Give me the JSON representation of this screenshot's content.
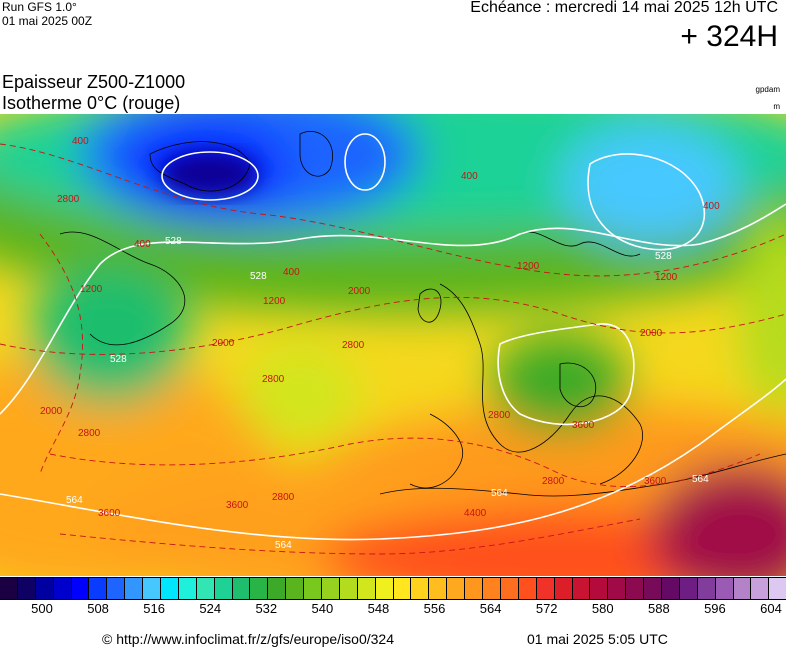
{
  "header": {
    "run_label": "Run GFS 1.0°",
    "run_date": "01 mai 2025 00Z",
    "valid_time": "Echéance : mercredi 14 mai 2025 12h UTC",
    "forecast_hour": "+ 324H"
  },
  "titles": {
    "line1": "Epaisseur Z500-Z1000",
    "line2": "Isotherme 0°C (rouge)",
    "unit_thickness": "gpdam",
    "unit_isotherm": "m"
  },
  "map": {
    "thickness_contour_labels": [
      "528",
      "528",
      "528",
      "528",
      "564",
      "564",
      "564",
      "564"
    ],
    "isotherm_labels": [
      "400",
      "400",
      "400",
      "400",
      "400",
      "1200",
      "1200",
      "1200",
      "1200",
      "2000",
      "2000",
      "2000",
      "2000",
      "2800",
      "2800",
      "2800",
      "2800",
      "2800",
      "2800",
      "2800",
      "3600",
      "3600",
      "3600",
      "4400",
      "3600"
    ]
  },
  "legend": {
    "ticks": [
      "500",
      "508",
      "516",
      "524",
      "532",
      "540",
      "548",
      "556",
      "564",
      "572",
      "580",
      "588",
      "596",
      "604"
    ],
    "colors": [
      "#1a0042",
      "#0f0064",
      "#0000a0",
      "#0000cd",
      "#0000ff",
      "#0a3cff",
      "#1e64ff",
      "#3296ff",
      "#46c8ff",
      "#00e6ff",
      "#1ef0dc",
      "#32e6b4",
      "#1ed296",
      "#1ebe6e",
      "#28b446",
      "#3caa28",
      "#5ab41e",
      "#78c81e",
      "#96d21e",
      "#b4dc1e",
      "#d2e61e",
      "#f0f01e",
      "#ffe61e",
      "#ffd21e",
      "#ffbe1e",
      "#ffaa1e",
      "#ff961e",
      "#ff821e",
      "#ff6e1e",
      "#ff501e",
      "#f03228",
      "#dc1e28",
      "#c81432",
      "#b40a3c",
      "#a00a46",
      "#8c0a50",
      "#780a5a",
      "#640a64",
      "#6e1e82",
      "#823c9b",
      "#9b5ab4",
      "#b482c8",
      "#c8a0dc",
      "#dcc8f0"
    ]
  },
  "footer": {
    "url": "© http://www.infoclimat.fr/z/gfs/europe/iso0/324",
    "generated": "01 mai 2025  5:05 UTC"
  }
}
